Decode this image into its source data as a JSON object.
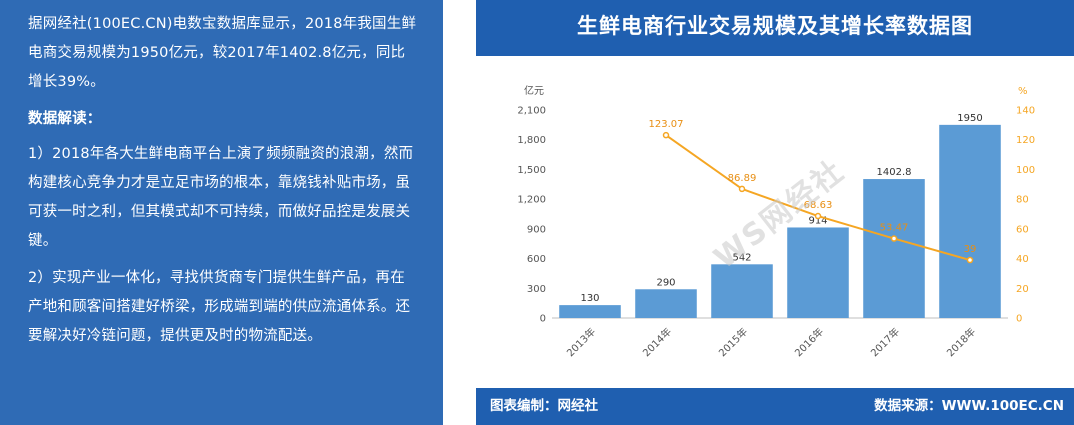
{
  "left_panel": {
    "intro": "据网经社(100EC.CN)电数宝数据库显示，2018年我国生鲜电商交易规模为1950亿元，较2017年1402.8亿元，同比增长39%。",
    "heading": "数据解读：",
    "point1": "1）2018年各大生鲜电商平台上演了频频融资的浪潮，然而构建核心竞争力才是立足市场的根本，靠烧钱补贴市场，虽可获一时之利，但其模式却不可持续，而做好品控是发展关键。",
    "point2": "2）实现产业一体化，寻找供货商专门提供生鲜产品，再在产地和顾客间搭建好桥梁，形成端到端的供应流通体系。还要解决好冷链问题，提供更及时的物流配送。"
  },
  "footer": {
    "left": "图表编制：网经社",
    "right": "数据来源：WWW.100EC.CN"
  },
  "watermark": "WS网经社",
  "colors": {
    "panel_blue": "#2f6bb5",
    "header_blue": "#1f5fb0",
    "bar": "#5b9bd5",
    "line": "#f5a623"
  },
  "chart_data": {
    "type": "bar",
    "title": "生鲜电商行业交易规模及其增长率数据图",
    "categories": [
      "2013年",
      "2014年",
      "2015年",
      "2016年",
      "2017年",
      "2018年"
    ],
    "series": [
      {
        "type": "bar",
        "axis": "left",
        "values": [
          130,
          290,
          542,
          914,
          1402.8,
          1950
        ],
        "labels": [
          "130",
          "290",
          "542",
          "914",
          "1402.8",
          "1950"
        ]
      },
      {
        "type": "line",
        "axis": "right",
        "values": [
          null,
          123.07,
          86.89,
          68.63,
          53.47,
          39
        ],
        "labels": [
          "",
          "123.07",
          "86.89",
          "68.63",
          "53.47",
          "39"
        ]
      }
    ],
    "y_left": {
      "unit": "亿元",
      "range": [
        0,
        2100
      ],
      "ticks": [
        "0",
        "300",
        "600",
        "900",
        "1,200",
        "1,500",
        "1,800",
        "2,100"
      ],
      "tick_values": [
        0,
        300,
        600,
        900,
        1200,
        1500,
        1800,
        2100
      ]
    },
    "y_right": {
      "unit": "%",
      "range": [
        0,
        140
      ],
      "ticks": [
        "0",
        "20",
        "40",
        "60",
        "80",
        "100",
        "120",
        "140"
      ],
      "tick_values": [
        0,
        20,
        40,
        60,
        80,
        100,
        120,
        140
      ]
    },
    "grid": false,
    "legend": "none"
  }
}
